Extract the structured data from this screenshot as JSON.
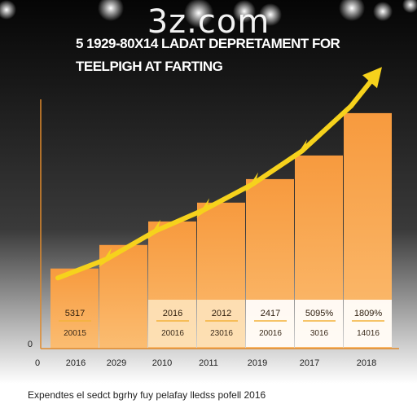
{
  "watermark": "3z.com",
  "footnote": "Expendtes el sedct bgrhy fuy pelafay lledss pofell 2016",
  "colors": {
    "sky_top": "#050505",
    "sky_bottom": "#ffffff",
    "bar": "#f79a3e",
    "bar_light": "#fbbd72",
    "bar_highlight": "#fde2b8",
    "trend": "#f6d21c",
    "axis": "#e08a2c",
    "label_band": "#ffffff",
    "label_underline": "#f3b23a"
  },
  "chart_data": {
    "type": "area",
    "title": "5 1929-80X14 LADAT DEPRETAMENT FOR",
    "subtitle": "TEELPIGH AT FARTING",
    "x_tick_labels": [
      "0",
      "2016",
      "2029",
      "2010",
      "2011",
      "2019",
      "2017",
      "2018"
    ],
    "y_tick_labels": [
      "0"
    ],
    "bars": [
      {
        "category": "2016",
        "value": 34,
        "label_top": "5317",
        "label_bottom": "20015"
      },
      {
        "category": "2029",
        "value": 44,
        "label_top": "",
        "label_bottom": ""
      },
      {
        "category": "2010",
        "value": 54,
        "label_top": "2016",
        "label_bottom": "20016"
      },
      {
        "category": "2011",
        "value": 62,
        "label_top": "2012",
        "label_bottom": "23016"
      },
      {
        "category": "2019",
        "value": 72,
        "label_top": "2417",
        "label_bottom": "20016"
      },
      {
        "category": "2017",
        "value": 82,
        "label_top": "5095%",
        "label_bottom": "3016"
      },
      {
        "category": "2018",
        "value": 100,
        "label_top": "1809%",
        "label_bottom": "14016"
      }
    ],
    "trend_series": [
      30,
      38,
      50,
      59,
      70,
      84,
      103
    ],
    "ylim": [
      0,
      110
    ],
    "grid": false,
    "legend": "none"
  }
}
